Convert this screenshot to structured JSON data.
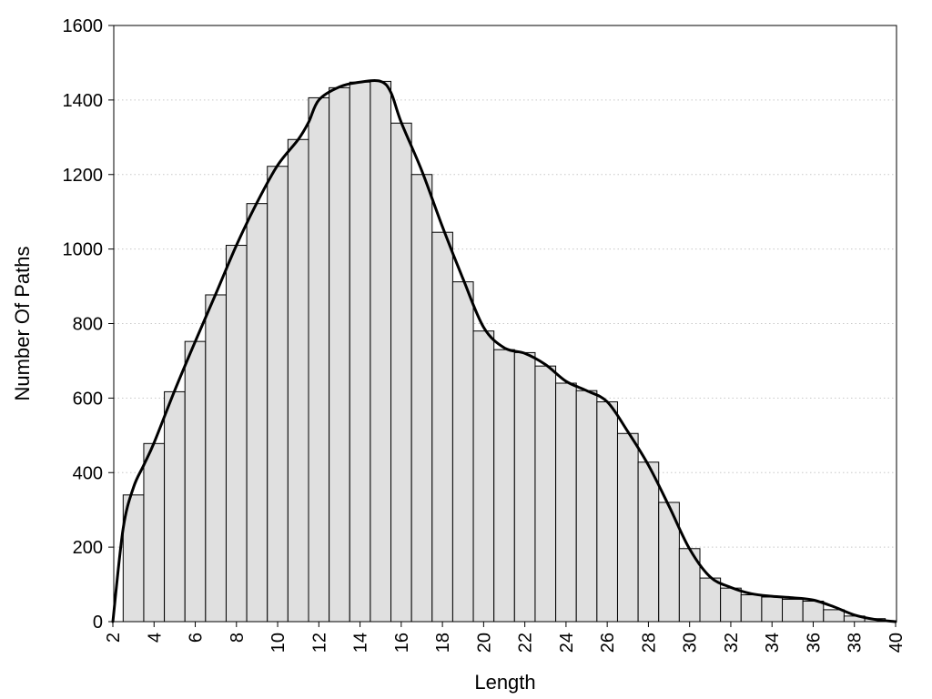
{
  "chart_data": {
    "type": "bar",
    "xlabel": "Length",
    "ylabel": "Number Of Paths",
    "xlim": [
      2,
      40
    ],
    "ylim": [
      0,
      1600
    ],
    "x_ticks": [
      2,
      4,
      6,
      8,
      10,
      12,
      14,
      16,
      18,
      20,
      22,
      24,
      26,
      28,
      30,
      32,
      34,
      36,
      38,
      40
    ],
    "y_ticks": [
      0,
      200,
      400,
      600,
      800,
      1000,
      1200,
      1400,
      1600
    ],
    "grid": "horizontal dotted",
    "series": [
      {
        "kind": "histogram",
        "x": [
          3,
          4,
          5,
          6,
          7,
          8,
          9,
          10,
          11,
          12,
          13,
          14,
          15,
          16,
          17,
          18,
          19,
          20,
          21,
          22,
          23,
          24,
          25,
          26,
          27,
          28,
          29,
          30,
          31,
          32,
          33,
          34,
          35,
          36,
          37,
          38,
          39
        ],
        "values": [
          340,
          478,
          617,
          752,
          877,
          1010,
          1122,
          1222,
          1294,
          1406,
          1433,
          1448,
          1450,
          1338,
          1200,
          1045,
          912,
          780,
          730,
          722,
          686,
          640,
          620,
          590,
          505,
          428,
          320,
          196,
          117,
          90,
          72,
          66,
          60,
          55,
          32,
          15,
          8
        ],
        "color": "#e0e0e0"
      },
      {
        "kind": "smoothed-line",
        "x": [
          2,
          2.5,
          3,
          3.5,
          4,
          5,
          6,
          7,
          8,
          9,
          10,
          11,
          11.5,
          12,
          13,
          14,
          15,
          15.5,
          16,
          17,
          18,
          19,
          20,
          21,
          22,
          23,
          24,
          25,
          26,
          27,
          28,
          29,
          30,
          31,
          32,
          33,
          34,
          35,
          36,
          37,
          38,
          39,
          40
        ],
        "values": [
          0,
          250,
          360,
          420,
          480,
          620,
          752,
          880,
          1010,
          1125,
          1225,
          1294,
          1340,
          1400,
          1435,
          1448,
          1450,
          1420,
          1340,
          1210,
          1060,
          920,
          790,
          735,
          720,
          690,
          645,
          620,
          590,
          510,
          420,
          310,
          195,
          120,
          92,
          75,
          68,
          64,
          58,
          40,
          18,
          6,
          0
        ],
        "color": "#000000"
      }
    ]
  }
}
